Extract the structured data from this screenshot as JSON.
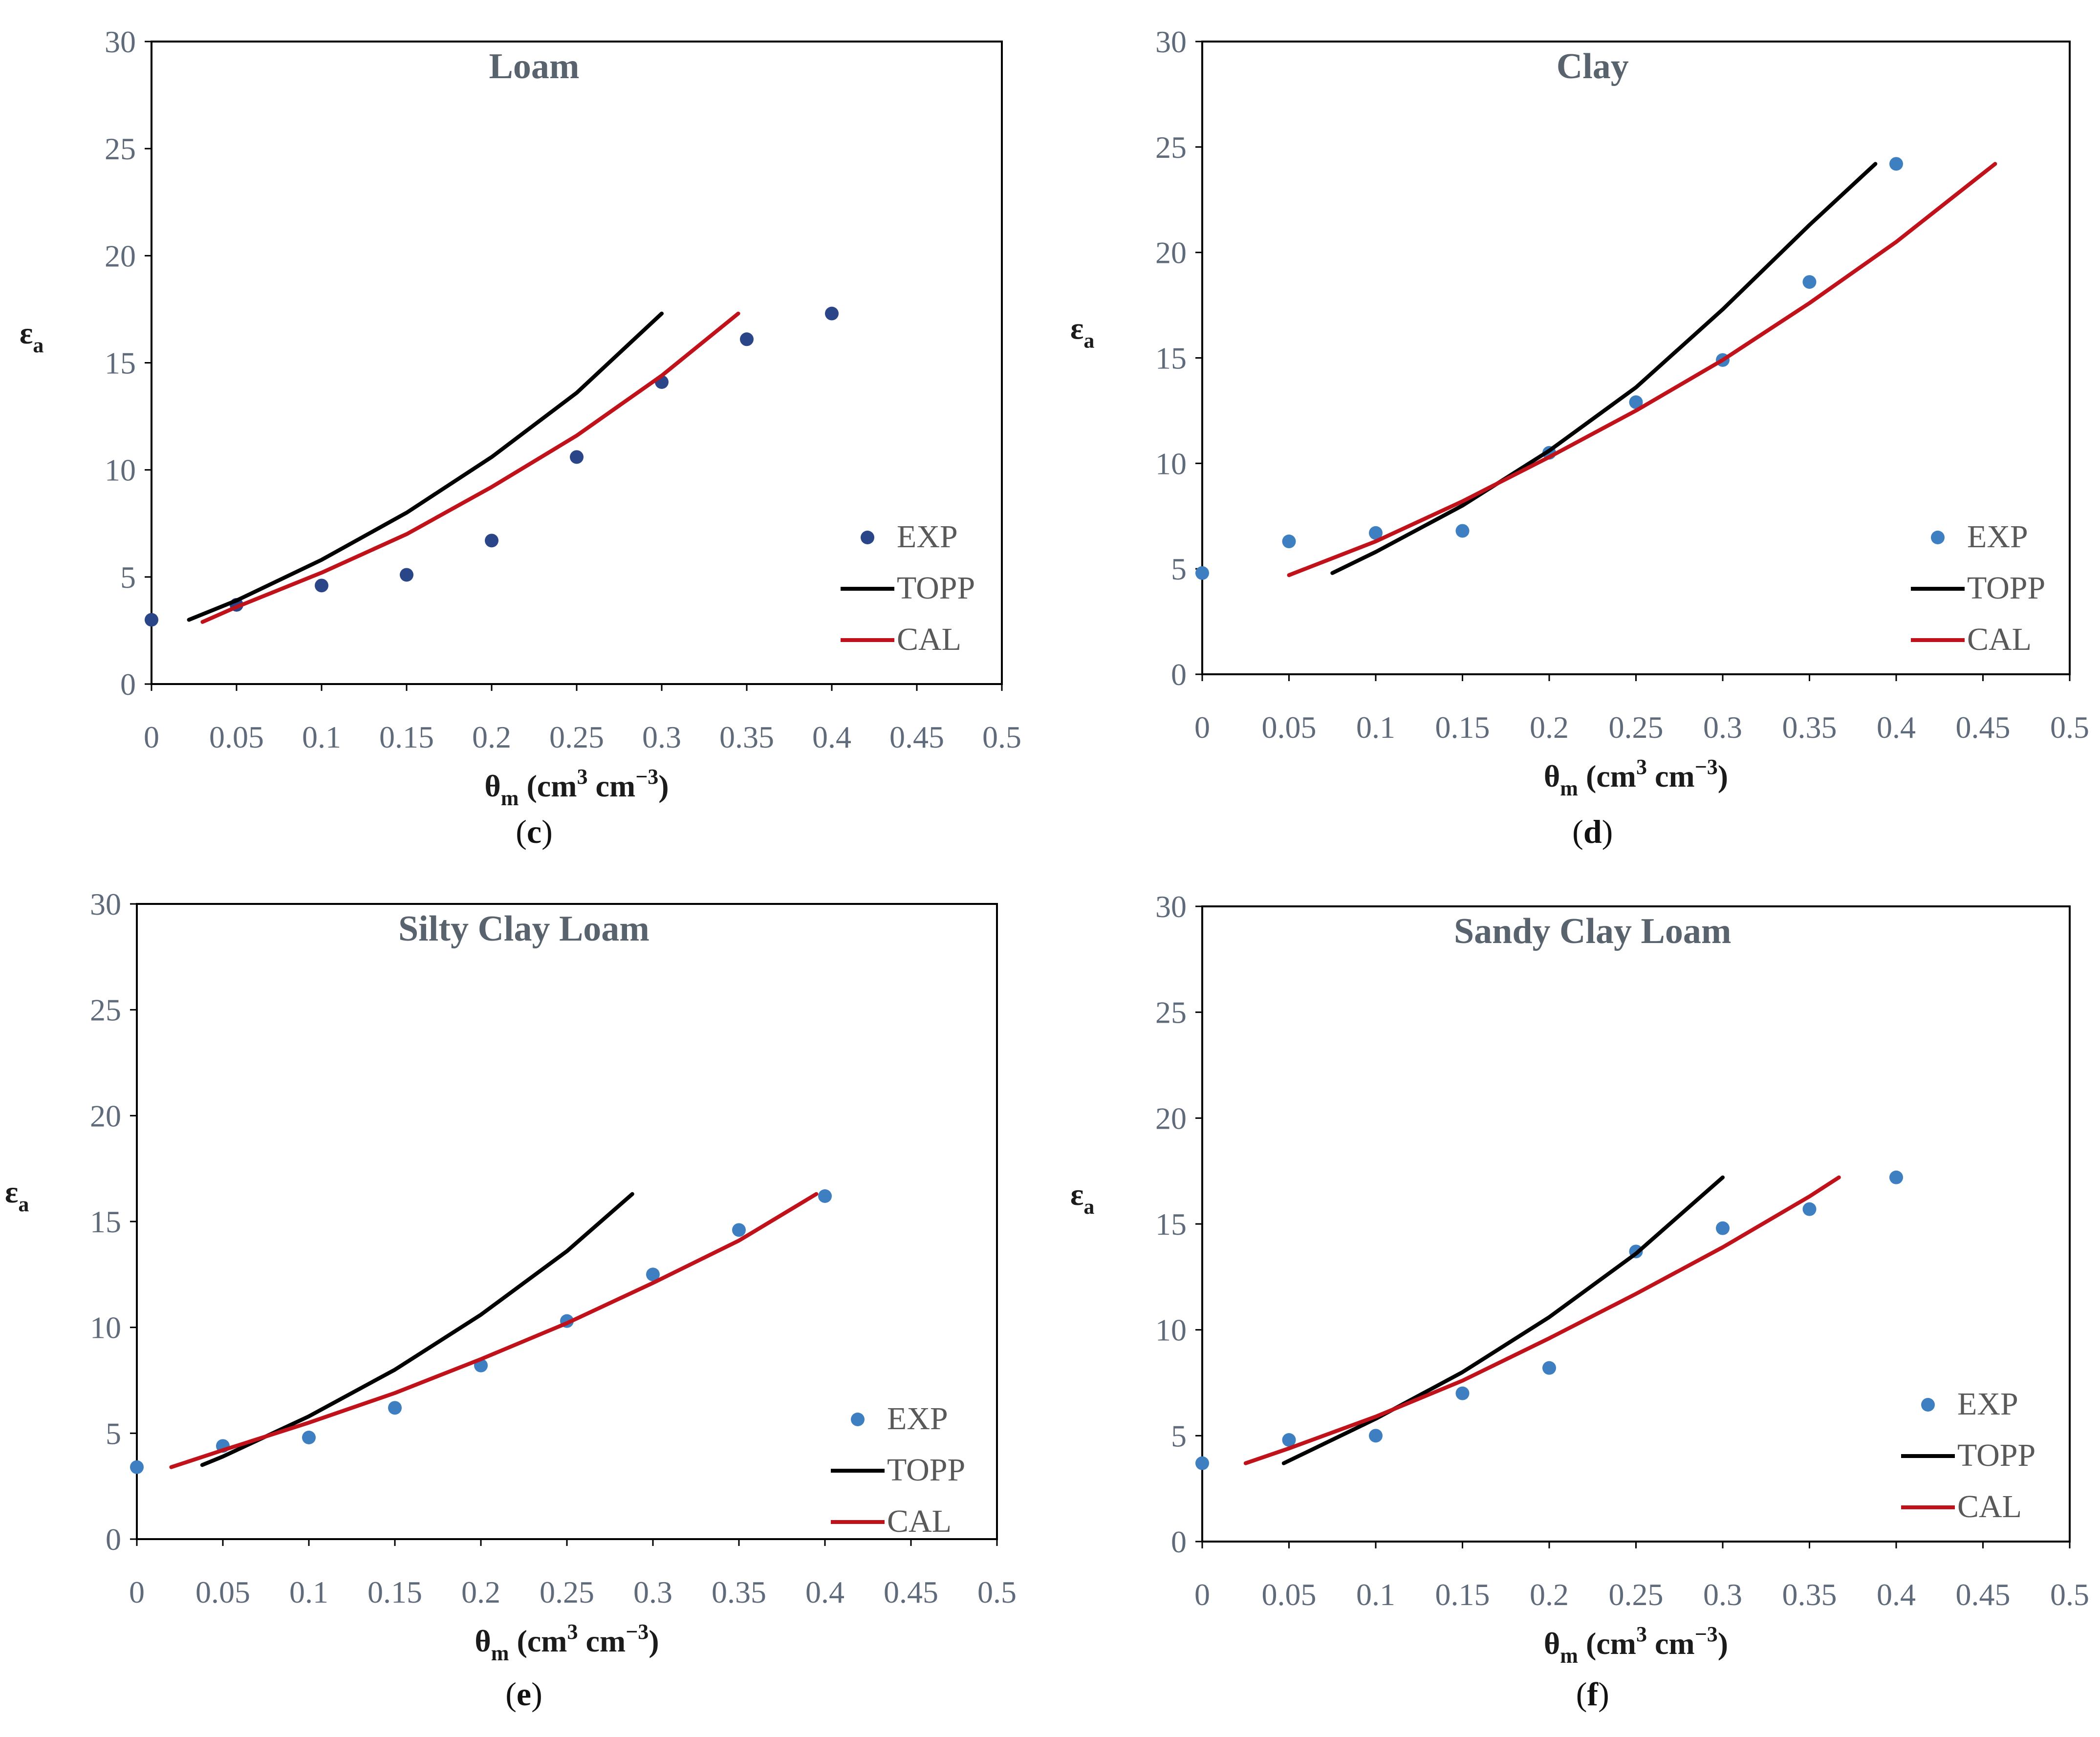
{
  "figure": {
    "description_colors": {
      "exp_loam": "#2b4589",
      "exp": "#3d7fc0",
      "topp": "#000000",
      "cal": "#c0121a",
      "tick_text": "#5f6b7a"
    }
  },
  "chart_data": [
    {
      "type": "scatter",
      "panel": "c",
      "title": "Loam",
      "caption": {
        "open": "(",
        "letter": "c",
        "close": ")"
      },
      "xlabel": {
        "main": "θ",
        "sub": "m",
        "units": " (cm",
        "sup1": "3",
        "mid": " cm",
        "sup2": "−3",
        "close": ")"
      },
      "ylabel": {
        "main": "ε",
        "sub": "a"
      },
      "xlim": [
        0,
        0.5
      ],
      "ylim": [
        0,
        30
      ],
      "xticks": [
        "0",
        "0.05",
        "0.1",
        "0.15",
        "0.2",
        "0.25",
        "0.3",
        "0.35",
        "0.4",
        "0.45",
        "0.5"
      ],
      "yticks": [
        "0",
        "5",
        "10",
        "15",
        "20",
        "25",
        "30"
      ],
      "legend": [
        "EXP",
        "TOPP",
        "CAL"
      ],
      "series": [
        {
          "name": "EXP",
          "kind": "points",
          "color": "#2b4589",
          "x": [
            0,
            0.05,
            0.1,
            0.15,
            0.2,
            0.25,
            0.3,
            0.35,
            0.4
          ],
          "y": [
            3.0,
            3.7,
            4.6,
            5.1,
            6.7,
            10.6,
            14.1,
            16.1,
            17.3
          ]
        },
        {
          "name": "TOPP",
          "kind": "line",
          "color": "#000000",
          "x": [
            0.022,
            0.05,
            0.1,
            0.15,
            0.2,
            0.25,
            0.3
          ],
          "y": [
            3.0,
            3.9,
            5.8,
            8.0,
            10.6,
            13.6,
            17.3
          ]
        },
        {
          "name": "CAL",
          "kind": "line",
          "color": "#c0121a",
          "x": [
            0.03,
            0.05,
            0.1,
            0.15,
            0.2,
            0.25,
            0.3,
            0.345
          ],
          "y": [
            2.9,
            3.6,
            5.2,
            7.0,
            9.2,
            11.6,
            14.4,
            17.3
          ]
        }
      ]
    },
    {
      "type": "scatter",
      "panel": "d",
      "title": "Clay",
      "caption": {
        "open": "(",
        "letter": "d",
        "close": ")"
      },
      "xlabel": {
        "main": "θ",
        "sub": "m",
        "units": " (cm",
        "sup1": "3",
        "mid": " cm",
        "sup2": "−3",
        "close": ")"
      },
      "ylabel": {
        "main": "ε",
        "sub": "a"
      },
      "xlim": [
        0,
        0.5
      ],
      "ylim": [
        0,
        30
      ],
      "xticks": [
        "0",
        "0.05",
        "0.1",
        "0.15",
        "0.2",
        "0.25",
        "0.3",
        "0.35",
        "0.4",
        "0.45",
        "0.5"
      ],
      "yticks": [
        "0",
        "5",
        "10",
        "15",
        "20",
        "25",
        "30"
      ],
      "legend": [
        "EXP",
        "TOPP",
        "CAL"
      ],
      "series": [
        {
          "name": "EXP",
          "kind": "points",
          "color": "#3d7fc0",
          "x": [
            0,
            0.05,
            0.1,
            0.15,
            0.2,
            0.25,
            0.3,
            0.35,
            0.4
          ],
          "y": [
            4.8,
            6.3,
            6.7,
            6.8,
            10.5,
            12.9,
            14.9,
            18.6,
            24.2
          ]
        },
        {
          "name": "TOPP",
          "kind": "line",
          "color": "#000000",
          "x": [
            0.075,
            0.1,
            0.15,
            0.2,
            0.25,
            0.3,
            0.35,
            0.388
          ],
          "y": [
            4.8,
            5.8,
            8.0,
            10.6,
            13.6,
            17.3,
            21.3,
            24.2
          ]
        },
        {
          "name": "CAL",
          "kind": "line",
          "color": "#c0121a",
          "x": [
            0.05,
            0.1,
            0.15,
            0.2,
            0.25,
            0.3,
            0.35,
            0.4,
            0.457
          ],
          "y": [
            4.7,
            6.3,
            8.2,
            10.3,
            12.5,
            14.9,
            17.6,
            20.5,
            24.2
          ]
        }
      ]
    },
    {
      "type": "scatter",
      "panel": "e",
      "title": "Silty Clay Loam",
      "caption": {
        "open": "(",
        "letter": "e",
        "close": ")"
      },
      "xlabel": {
        "main": "θ",
        "sub": "m",
        "units": " (cm",
        "sup1": "3",
        "mid": " cm",
        "sup2": "−3",
        "close": ")"
      },
      "ylabel": {
        "main": "ε",
        "sub": "a"
      },
      "xlim": [
        0,
        0.5
      ],
      "ylim": [
        0,
        30
      ],
      "xticks": [
        "0",
        "0.05",
        "0.1",
        "0.15",
        "0.2",
        "0.25",
        "0.3",
        "0.35",
        "0.4",
        "0.45",
        "0.5"
      ],
      "yticks": [
        "0",
        "5",
        "10",
        "15",
        "20",
        "25",
        "30"
      ],
      "legend": [
        "EXP",
        "TOPP",
        "CAL"
      ],
      "series": [
        {
          "name": "EXP",
          "kind": "points",
          "color": "#3d7fc0",
          "x": [
            0,
            0.05,
            0.1,
            0.15,
            0.2,
            0.25,
            0.3,
            0.35,
            0.4
          ],
          "y": [
            3.4,
            4.4,
            4.8,
            6.2,
            8.2,
            10.3,
            12.5,
            14.6,
            16.2
          ]
        },
        {
          "name": "TOPP",
          "kind": "line",
          "color": "#000000",
          "x": [
            0.038,
            0.05,
            0.1,
            0.15,
            0.2,
            0.25,
            0.288
          ],
          "y": [
            3.5,
            3.9,
            5.8,
            8.0,
            10.6,
            13.6,
            16.3
          ]
        },
        {
          "name": "CAL",
          "kind": "line",
          "color": "#c0121a",
          "x": [
            0.02,
            0.05,
            0.1,
            0.15,
            0.2,
            0.25,
            0.3,
            0.35,
            0.395
          ],
          "y": [
            3.4,
            4.2,
            5.5,
            6.9,
            8.5,
            10.2,
            12.1,
            14.1,
            16.3
          ]
        }
      ]
    },
    {
      "type": "scatter",
      "panel": "f",
      "title": "Sandy Clay Loam",
      "caption": {
        "open": "(",
        "letter": "f",
        "close": ")"
      },
      "xlabel": {
        "main": "θ",
        "sub": "m",
        "units": " (cm",
        "sup1": "3",
        "mid": " cm",
        "sup2": "−3",
        "close": ")"
      },
      "ylabel": {
        "main": "ε",
        "sub": "a"
      },
      "xlim": [
        0,
        0.5
      ],
      "ylim": [
        0,
        30
      ],
      "xticks": [
        "0",
        "0.05",
        "0.1",
        "0.15",
        "0.2",
        "0.25",
        "0.3",
        "0.35",
        "0.4",
        "0.45",
        "0.5"
      ],
      "yticks": [
        "0",
        "5",
        "10",
        "15",
        "20",
        "25",
        "30"
      ],
      "legend": [
        "EXP",
        "TOPP",
        "CAL"
      ],
      "series": [
        {
          "name": "EXP",
          "kind": "points",
          "color": "#3d7fc0",
          "x": [
            0,
            0.05,
            0.1,
            0.15,
            0.2,
            0.25,
            0.3,
            0.35,
            0.4
          ],
          "y": [
            3.7,
            4.8,
            5.0,
            7.0,
            8.2,
            13.7,
            14.8,
            15.7,
            17.2
          ]
        },
        {
          "name": "TOPP",
          "kind": "line",
          "color": "#000000",
          "x": [
            0.047,
            0.1,
            0.15,
            0.2,
            0.25,
            0.3
          ],
          "y": [
            3.7,
            5.8,
            8.0,
            10.6,
            13.6,
            17.2
          ]
        },
        {
          "name": "CAL",
          "kind": "line",
          "color": "#c0121a",
          "x": [
            0.025,
            0.05,
            0.1,
            0.15,
            0.2,
            0.25,
            0.3,
            0.35,
            0.367
          ],
          "y": [
            3.7,
            4.4,
            5.9,
            7.6,
            9.6,
            11.7,
            13.9,
            16.3,
            17.2
          ]
        }
      ]
    }
  ]
}
